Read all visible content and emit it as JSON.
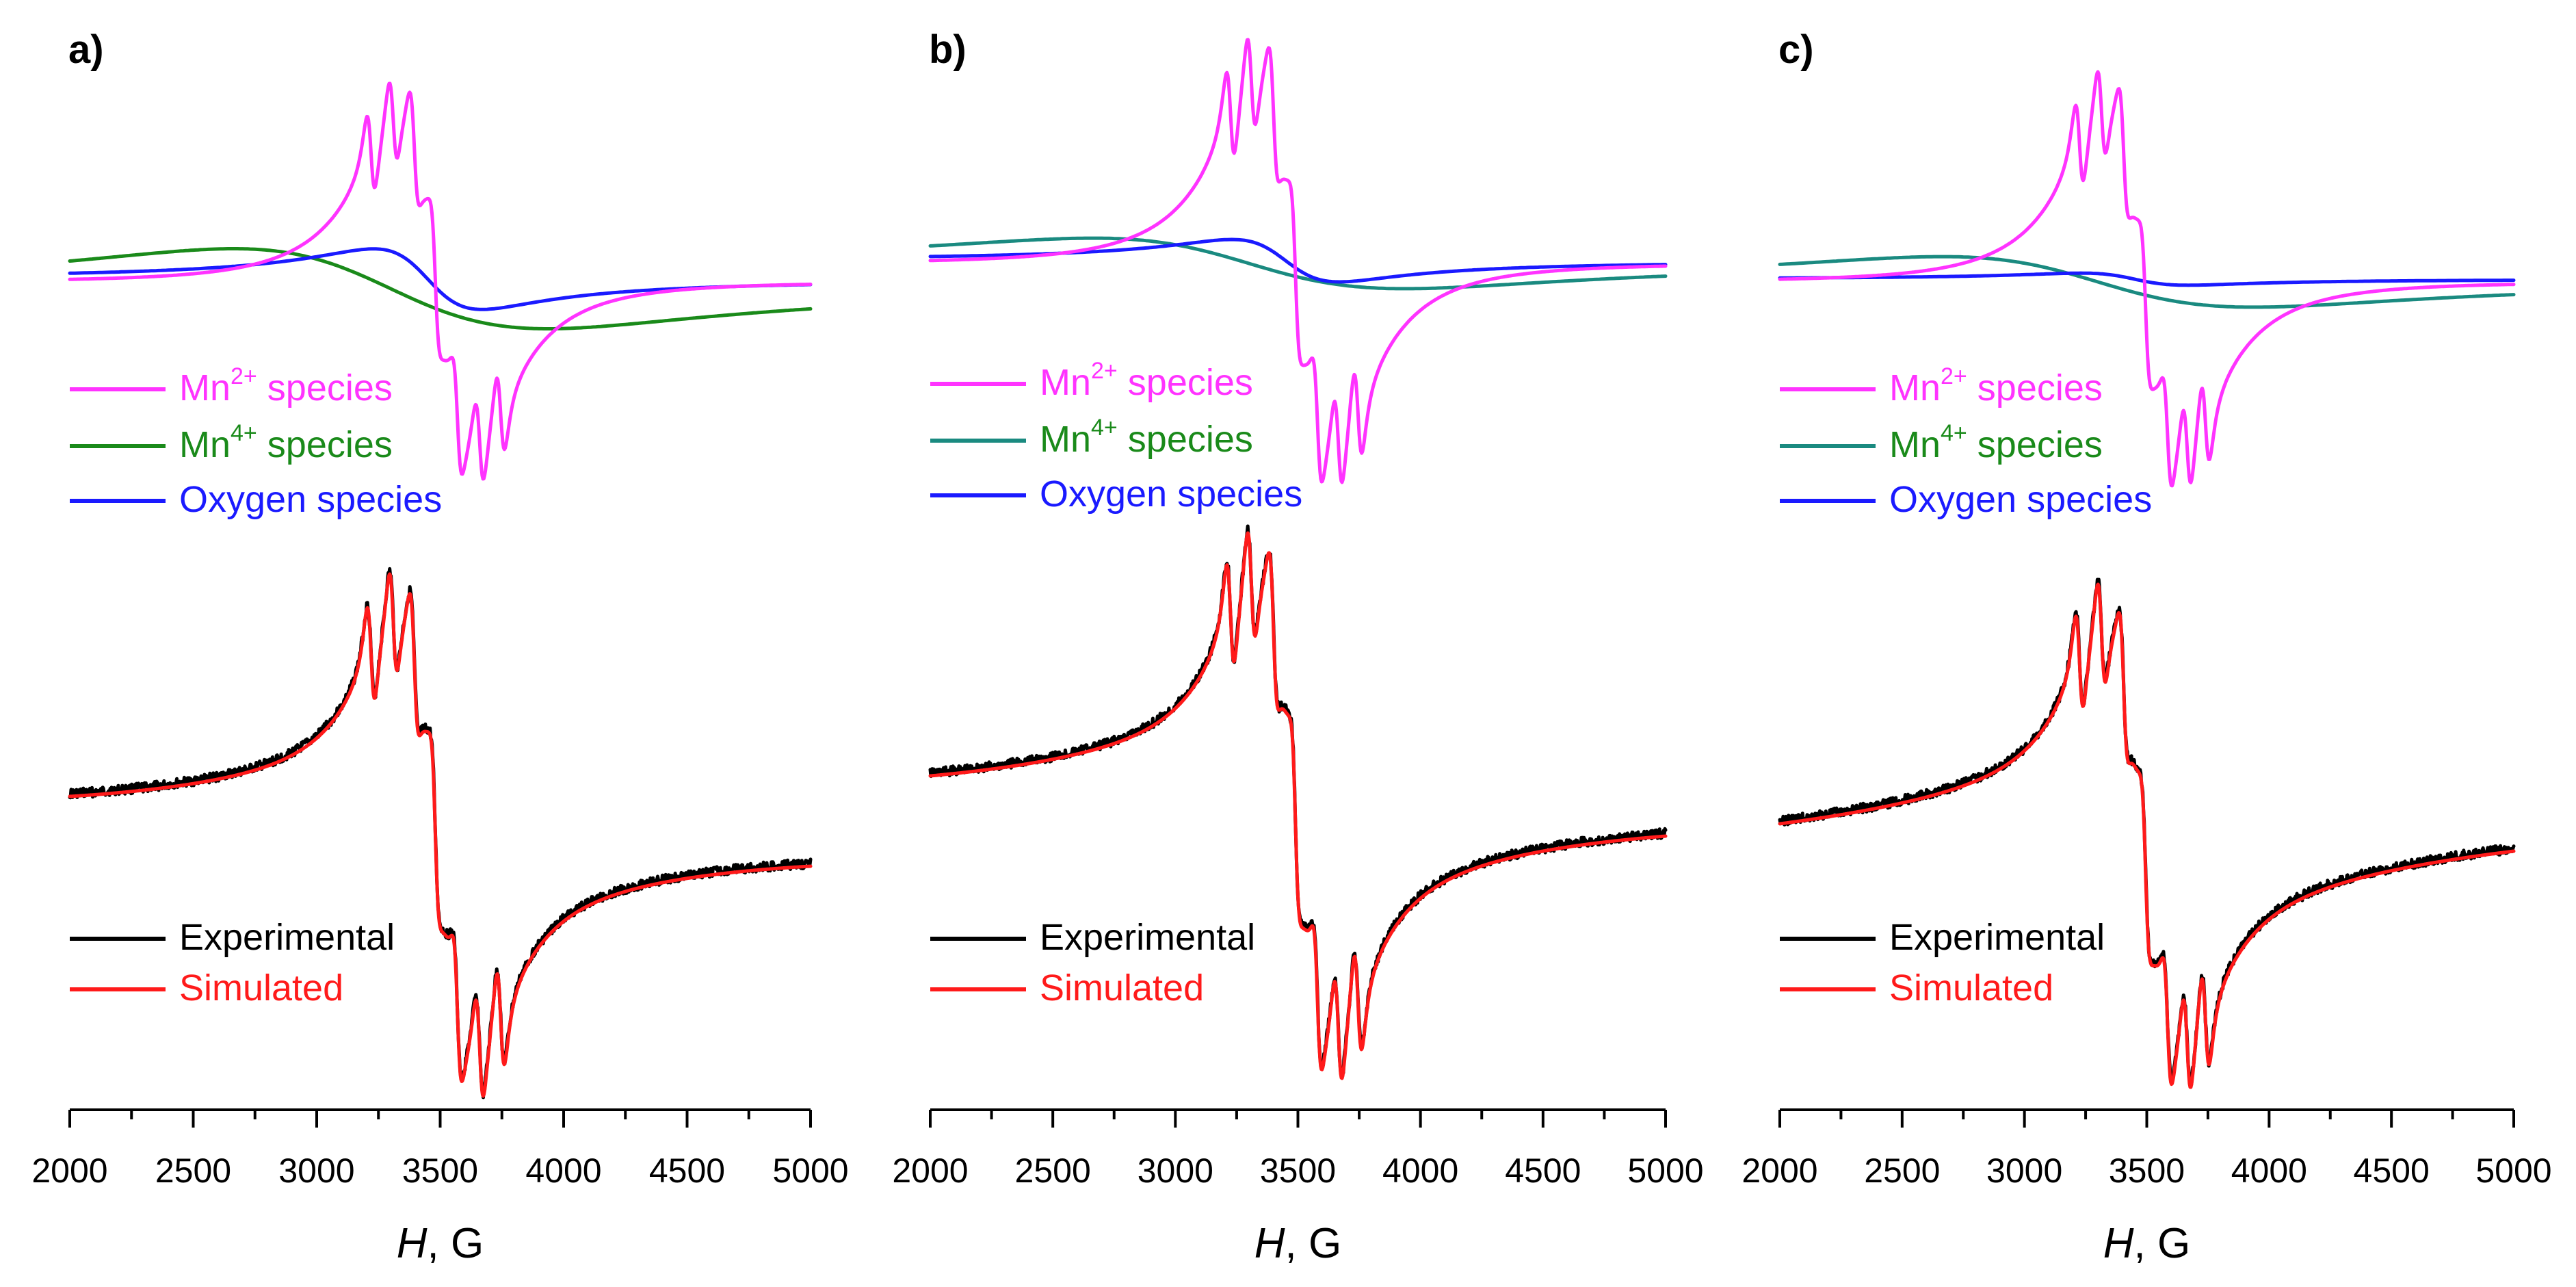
{
  "chart_data": [
    {
      "type": "line",
      "panel_label": "a)",
      "xlabel_var": "H",
      "xlabel_unit": ", G",
      "xlim": [
        2000,
        5000
      ],
      "xticks": [
        "2000",
        "2500",
        "3000",
        "3500",
        "4000",
        "4500",
        "5000"
      ],
      "components": {
        "mn2": {
          "label_main": "Mn",
          "label_sup": "2+",
          "label_rest": " species",
          "color": "#ff33ff",
          "lorentz_amp": 2.8,
          "line_colour": "#ff33ff",
          "text_colour": "#ff33ff"
        },
        "mn4": {
          "label_main": "Mn",
          "label_sup": "4+",
          "label_rest": " species",
          "line_colour": "#1a8a1a",
          "text_colour": "#1a8a1a"
        },
        "oxy": {
          "label": "Oxygen species",
          "line_colour": "#1a1aff",
          "text_colour": "#1a1aff"
        }
      },
      "fit": {
        "exp": {
          "label": "Experimental",
          "line_colour": "#000000",
          "text_colour": "#000000"
        },
        "sim": {
          "label": "Simulated",
          "line_colour": "#ff1a1a",
          "text_colour": "#ff1a1a"
        }
      },
      "spectrum": {
        "hyperfine_lines": [
          3220,
          3310,
          3395,
          3480,
          3570,
          3660,
          3745
        ],
        "components_peak_max": 3215,
        "components_peak_min": 3750,
        "fit_peak_max": 3222,
        "fit_peak_min": 3748,
        "fit_baseline_left": 0.0,
        "fit_baseline_right": 0.14
      }
    },
    {
      "type": "line",
      "panel_label": "b)",
      "xlabel_var": "H",
      "xlabel_unit": ", G",
      "xlim": [
        2000,
        5000
      ],
      "xticks": [
        "2000",
        "2500",
        "3000",
        "3500",
        "4000",
        "4500",
        "5000"
      ],
      "components": {
        "mn2": {
          "label_main": "Mn",
          "label_sup": "2+",
          "label_rest": " species",
          "line_colour": "#ff33ff",
          "text_colour": "#ff33ff"
        },
        "mn4": {
          "label_main": "Mn",
          "label_sup": "4+",
          "label_rest": " species",
          "line_colour": "#1a8a80",
          "text_colour": "#1a8a1a"
        },
        "oxy": {
          "label": "Oxygen species",
          "line_colour": "#1a1aff",
          "text_colour": "#1a1aff"
        }
      },
      "fit": {
        "exp": {
          "label": "Experimental",
          "line_colour": "#000000",
          "text_colour": "#000000"
        },
        "sim": {
          "label": "Simulated",
          "line_colour": "#ff1a1a",
          "text_colour": "#ff1a1a"
        }
      },
      "spectrum": {
        "hyperfine_lines": [
          3225,
          3310,
          3400,
          3490,
          3580,
          3665,
          3745
        ],
        "components_peak_max": 3222,
        "components_peak_min": 3745,
        "fit_peak_max": 3222,
        "fit_peak_min": 3742,
        "fit_baseline_left": 0.0,
        "fit_baseline_right": 0.12
      }
    },
    {
      "type": "line",
      "panel_label": "c)",
      "xlabel_var": "H",
      "xlabel_unit": ", G",
      "xlim": [
        2000,
        5000
      ],
      "xticks": [
        "2000",
        "2500",
        "3000",
        "3500",
        "4000",
        "4500",
        "5000"
      ],
      "components": {
        "mn2": {
          "label_main": "Mn",
          "label_sup": "2+",
          "label_rest": " species",
          "line_colour": "#ff33ff",
          "text_colour": "#ff33ff"
        },
        "mn4": {
          "label_main": "Mn",
          "label_sup": "4+",
          "label_rest": " species",
          "line_colour": "#1a8a80",
          "text_colour": "#1a8a1a"
        },
        "oxy": {
          "label": "Oxygen species",
          "line_colour": "#1a1aff",
          "text_colour": "#1a1aff"
        }
      },
      "fit": {
        "exp": {
          "label": "Experimental",
          "line_colour": "#000000",
          "text_colour": "#000000"
        },
        "sim": {
          "label": "Simulated",
          "line_colour": "#ff1a1a",
          "text_colour": "#ff1a1a"
        }
      },
      "spectrum": {
        "hyperfine_lines": [
          3225,
          3315,
          3405,
          3495,
          3585,
          3665,
          3740
        ],
        "components_peak_max": 3220,
        "components_peak_min": 3740,
        "fit_peak_max": 3222,
        "fit_peak_min": 3738,
        "fit_baseline_left": 0.0,
        "fit_baseline_right": 0.09
      }
    }
  ]
}
